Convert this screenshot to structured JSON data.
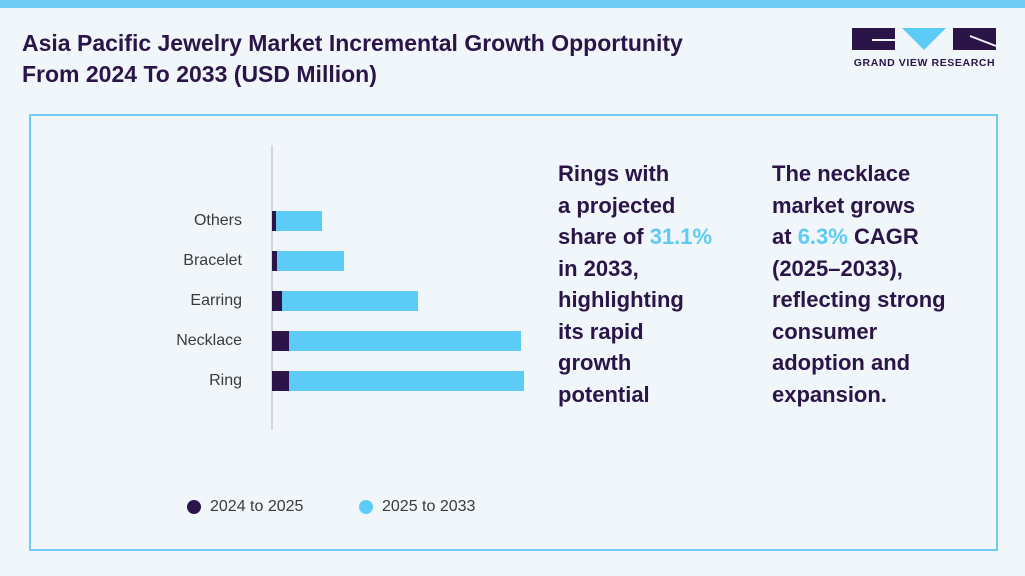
{
  "header": {
    "title": "Asia Pacific Jewelry Market Incremental Growth Opportunity From 2024 To 2033 (USD Million)",
    "brand": "GRAND VIEW RESEARCH"
  },
  "chart_data": {
    "type": "stacked-hbar",
    "categories": [
      "Others",
      "Bracelet",
      "Earring",
      "Necklace",
      "Ring"
    ],
    "series": [
      {
        "name": "2024 to 2025",
        "color": "#2b1548",
        "values": [
          4,
          5,
          10,
          17,
          17
        ]
      },
      {
        "name": "2025 to 2033",
        "color": "#5ccbf5",
        "values": [
          46,
          67,
          136,
          232,
          235
        ]
      }
    ]
  },
  "annotations": [
    {
      "lines": [
        [
          "Rings with"
        ],
        [
          "a projected"
        ],
        [
          "share of ",
          {
            "text": "31.1%",
            "color": "#5ccbf5"
          }
        ],
        [
          "in 2033,"
        ],
        [
          "highlighting"
        ],
        [
          "its rapid"
        ],
        [
          "growth"
        ],
        [
          "potential"
        ]
      ]
    },
    {
      "lines": [
        [
          "The necklace"
        ],
        [
          "market grows"
        ],
        [
          "at ",
          {
            "text": "6.3%",
            "color": "#5ccbf5"
          },
          " CAGR"
        ],
        [
          "(2025–2033),"
        ],
        [
          "reflecting strong"
        ],
        [
          "consumer"
        ],
        [
          "adoption and"
        ],
        [
          "expansion."
        ]
      ]
    }
  ]
}
